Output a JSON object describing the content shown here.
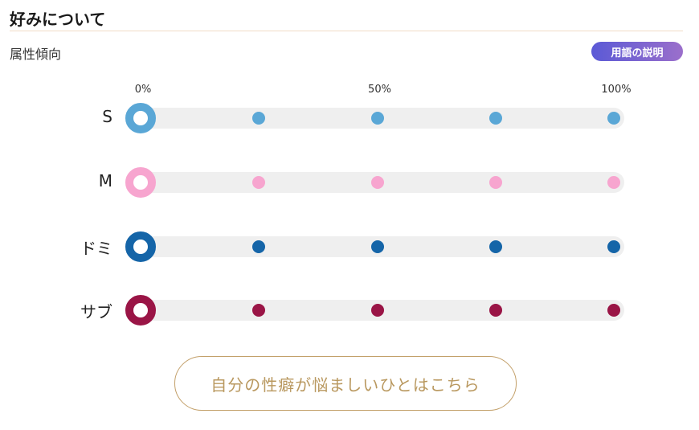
{
  "header": {
    "title": "好みについて"
  },
  "section": {
    "label": "属性傾向"
  },
  "glossary_button": {
    "label": "用語の説明"
  },
  "scale": {
    "labels": [
      "0%",
      "50%",
      "100%"
    ],
    "label_positions": [
      0,
      50,
      100
    ]
  },
  "rows": [
    {
      "label": "S",
      "value": 0,
      "color": "#5aa7d6"
    },
    {
      "label": "M",
      "value": 0,
      "color": "#f7a5cf"
    },
    {
      "label": "ドミ",
      "value": 0,
      "color": "#1565a8"
    },
    {
      "label": "サブ",
      "value": 0,
      "color": "#9a1546"
    }
  ],
  "steps": [
    25,
    50,
    75,
    100
  ],
  "cta": {
    "label": "自分の性癖が悩ましいひとはこちら"
  }
}
